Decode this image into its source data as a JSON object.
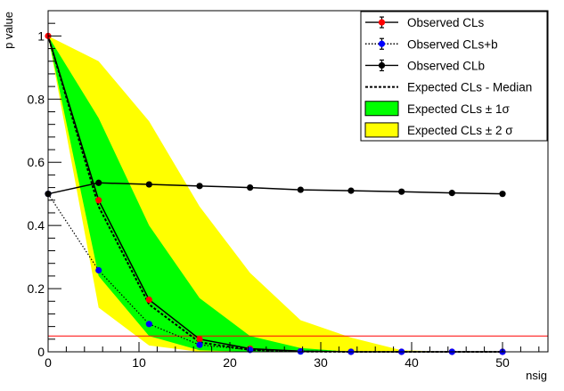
{
  "chart_data": {
    "type": "line",
    "xlabel": "nsig",
    "ylabel": "p value",
    "xlim": [
      0,
      55
    ],
    "ylim": [
      0,
      1.08
    ],
    "x_ticks": [
      0,
      10,
      20,
      30,
      40,
      50
    ],
    "y_ticks": [
      0,
      0.2,
      0.4,
      0.6,
      0.8,
      1
    ],
    "x_tick_labels": [
      "0",
      "10",
      "20",
      "30",
      "40",
      "50"
    ],
    "y_tick_labels": [
      "0",
      "0.2",
      "0.4",
      "0.6",
      "0.8",
      "1"
    ],
    "grid": false,
    "legend_position": "top-right",
    "x": [
      0,
      5.56,
      11.11,
      16.67,
      22.22,
      27.78,
      33.33,
      38.89,
      44.44,
      50
    ],
    "series": [
      {
        "name": "Observed CLs",
        "style": "solid",
        "marker_color": "#ff0000",
        "values": [
          1.0,
          0.48,
          0.165,
          0.04,
          0.01,
          0.002,
          0.0,
          0.0,
          0.0,
          0.0
        ]
      },
      {
        "name": "Observed CLs+b",
        "style": "dotted",
        "marker_color": "#0000ff",
        "values": [
          0.5,
          0.258,
          0.088,
          0.022,
          0.006,
          0.001,
          0.0,
          0.0,
          0.0,
          0.0
        ]
      },
      {
        "name": "Observed CLb",
        "style": "solid",
        "marker_color": "#000000",
        "values": [
          0.5,
          0.535,
          0.53,
          0.525,
          0.52,
          0.513,
          0.51,
          0.507,
          0.503,
          0.5
        ]
      },
      {
        "name": "Expected CLs - Median",
        "style": "dashed",
        "values": [
          1.0,
          0.46,
          0.15,
          0.03,
          0.006,
          0.001,
          0.0,
          0.0,
          0.0,
          0.0
        ]
      }
    ],
    "bands": [
      {
        "name": "Expected CLs ± 1σ",
        "color": "#00ff00",
        "lower": [
          1.0,
          0.24,
          0.05,
          0.005,
          0.0,
          0.0,
          0.0,
          0.0,
          0.0,
          0.0
        ],
        "upper": [
          1.0,
          0.74,
          0.4,
          0.17,
          0.05,
          0.012,
          0.0,
          0.0,
          0.0,
          0.0
        ]
      },
      {
        "name": "Expected CLs ± 2 σ",
        "color": "#ffff00",
        "lower": [
          1.0,
          0.14,
          0.02,
          0.0,
          0.0,
          0.0,
          0.0,
          0.0,
          0.0,
          0.0
        ],
        "upper": [
          1.0,
          0.92,
          0.73,
          0.46,
          0.25,
          0.1,
          0.045,
          0.005,
          0.0,
          0.0
        ]
      }
    ],
    "threshold": {
      "value": 0.05,
      "color": "#ff0000"
    },
    "legend": [
      {
        "label": "Observed CLs",
        "kind": "errorbar",
        "marker_color": "#ff0000",
        "line": "solid"
      },
      {
        "label": "Observed CLs+b",
        "kind": "errorbar",
        "marker_color": "#0000ff",
        "line": "dotted"
      },
      {
        "label": "Observed CLb",
        "kind": "errorbar",
        "marker_color": "#000000",
        "line": "solid"
      },
      {
        "label": "Expected CLs - Median",
        "kind": "line",
        "line": "dashed"
      },
      {
        "label": "Expected CLs ± 1σ",
        "kind": "box",
        "color": "#00ff00"
      },
      {
        "label": "Expected CLs ± 2 σ",
        "kind": "box",
        "color": "#ffff00"
      }
    ]
  }
}
